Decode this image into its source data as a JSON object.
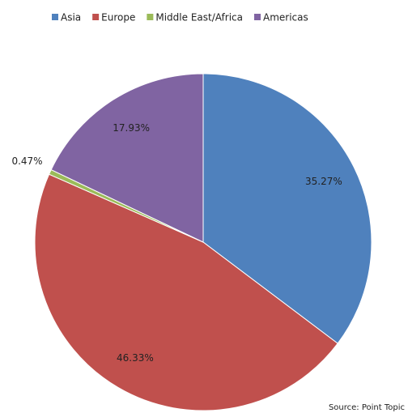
{
  "chart_data": {
    "type": "pie",
    "categories": [
      "Asia",
      "Europe",
      "Middle East/Africa",
      "Americas"
    ],
    "values": [
      35.27,
      46.33,
      0.47,
      17.93
    ],
    "value_labels": [
      "35.27%",
      "46.33%",
      "0.47%",
      "17.93%"
    ],
    "colors": [
      "#4f81bd",
      "#c0504d",
      "#9bbb59",
      "#8064a2"
    ],
    "legend": "top",
    "source": "Source: Point Topic"
  }
}
